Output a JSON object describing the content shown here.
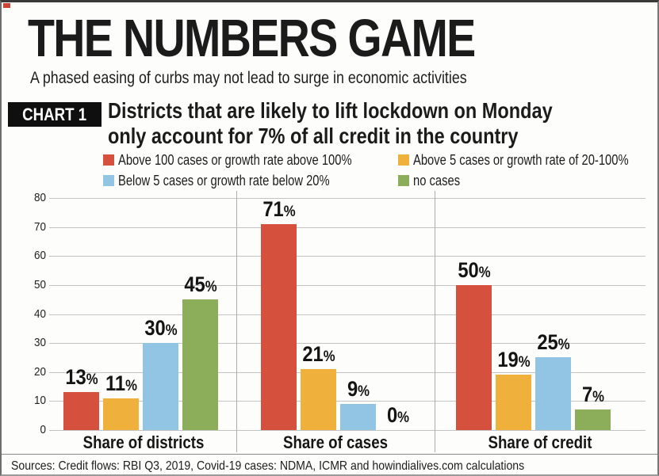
{
  "header": {
    "title": "THE NUMBERS GAME",
    "subtitle": "A phased easing of curbs may not lead to surge in economic activities",
    "chart_badge": "CHART 1",
    "chart_heading_line1": "Districts that are likely to lift lockdown on Monday",
    "chart_heading_line2": "only account for 7% of all credit in the country"
  },
  "legend": [
    {
      "label": "Above 100 cases or growth rate above 100%",
      "color": "#d5513e"
    },
    {
      "label": "Above 5 cases or growth rate of 20-100%",
      "color": "#efb13c"
    },
    {
      "label": "Below 5 cases or growth rate below 20%",
      "color": "#92c5e4"
    },
    {
      "label": "no cases",
      "color": "#8cae5b"
    }
  ],
  "chart_data": {
    "type": "bar",
    "title": "Districts that are likely to lift lockdown on Monday only account for 7% of all credit in the country",
    "categories": [
      "Share of districts",
      "Share of cases",
      "Share of credit"
    ],
    "series": [
      {
        "name": "Above 100 cases or growth rate above 100%",
        "color": "#d5513e",
        "values": [
          13,
          71,
          50
        ]
      },
      {
        "name": "Above 5 cases or growth rate of 20-100%",
        "color": "#efb13c",
        "values": [
          11,
          21,
          19
        ]
      },
      {
        "name": "Below 5 cases or growth rate below 20%",
        "color": "#92c5e4",
        "values": [
          30,
          9,
          25
        ]
      },
      {
        "name": "no cases",
        "color": "#8cae5b",
        "values": [
          45,
          0,
          7
        ]
      }
    ],
    "value_labels": [
      [
        "13%",
        "71%",
        "50%"
      ],
      [
        "11%",
        "21%",
        "19%"
      ],
      [
        "30%",
        "9%",
        "25%"
      ],
      [
        "45%",
        "0%",
        "7%"
      ]
    ],
    "xlabel": "",
    "ylabel": "",
    "ylim": [
      0,
      80
    ],
    "ytick_step": 10,
    "yticks": [
      "0",
      "10",
      "20",
      "30",
      "40",
      "50",
      "60",
      "70",
      "80"
    ],
    "grid": true,
    "legend_position": "top"
  },
  "footer": {
    "sources": "Sources: Credit flows: RBI Q3, 2019, Covid-19 cases: NDMA, ICMR and howindialives.com calculations"
  }
}
